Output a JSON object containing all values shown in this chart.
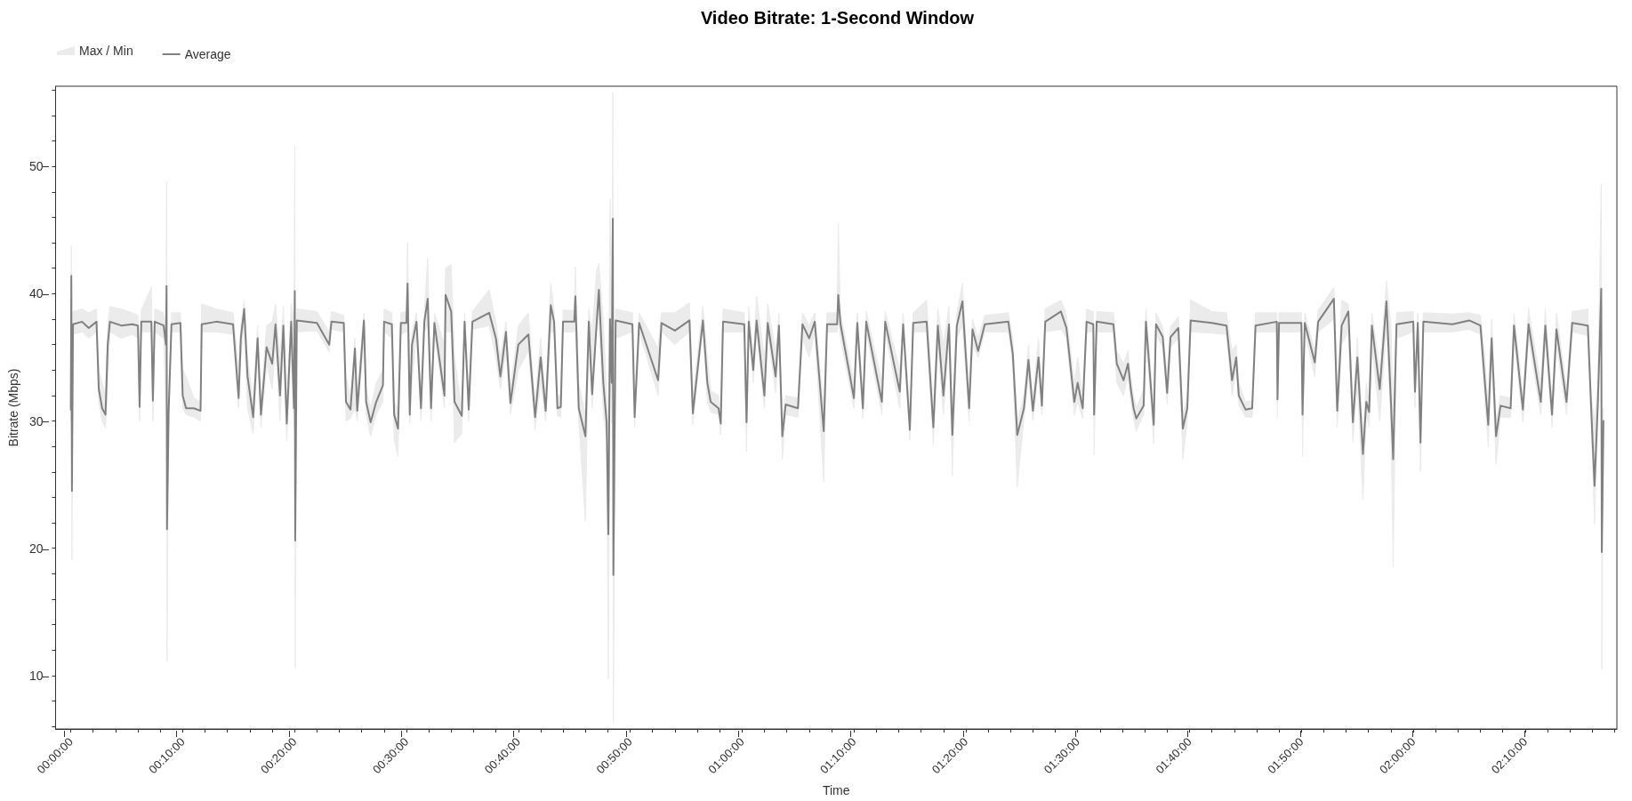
{
  "chart_data": {
    "type": "line",
    "title": "Video Bitrate: 1-Second Window",
    "xlabel": "Time",
    "ylabel": "Bitrate (Mbps)",
    "annotations": [
      "Max / Min"
    ],
    "x": [
      0,
      0.0008,
      0.0017,
      0.0033,
      0.0167,
      0.0267,
      0.0383,
      0.0417,
      0.0467,
      0.0517,
      0.055,
      0.0583,
      0.075,
      0.0917,
      0.1,
      0.1025,
      0.105,
      0.12,
      0.1223,
      0.125,
      0.1383,
      0.1417,
      0.1427,
      0.1433,
      0.1458,
      0.15,
      0.1633,
      0.1667,
      0.1717,
      0.1833,
      0.1933,
      0.195,
      0.2167,
      0.2417,
      0.25,
      0.2533,
      0.2583,
      0.2633,
      0.2717,
      0.2783,
      0.2833,
      0.2917,
      0.3,
      0.305,
      0.3117,
      0.3167,
      0.3217,
      0.3283,
      0.3325,
      0.3337,
      0.3343,
      0.3367,
      0.3667,
      0.385,
      0.3883,
      0.4067,
      0.41,
      0.4167,
      0.4233,
      0.4267,
      0.4367,
      0.44,
      0.4467,
      0.455,
      0.465,
      0.4667,
      0.4783,
      0.4817,
      0.4875,
      0.4917,
      0.5,
      0.5017,
      0.505,
      0.5083,
      0.515,
      0.5217,
      0.5267,
      0.5317,
      0.5367,
      0.5417,
      0.5567,
      0.5583,
      0.5667,
      0.5717,
      0.5825,
      0.5867,
      0.5928,
      0.5983,
      0.6233,
      0.6333,
      0.64,
      0.6483,
      0.655,
      0.6667,
      0.6817,
      0.6917,
      0.7,
      0.7075,
      0.715,
      0.72,
      0.725,
      0.73,
      0.7333,
      0.75,
      0.7517,
      0.7567,
      0.7667,
      0.7717,
      0.7767,
      0.7833,
      0.7867,
      0.7933,
      0.7983,
      0.8008,
      0.8033,
      0.8058,
      0.8075,
      0.8083,
      0.8117,
      0.8367,
      0.84,
      0.8467,
      0.875,
      0.88,
      0.9,
      0.9217,
      0.9267,
      0.9417,
      0.9483,
      0.9533,
      0.965,
      0.9683,
      0.9717,
      1.0033,
      1.0067,
      1.01,
      1.0167,
      1.0217,
      1.0333,
      1.0383,
      1.05,
      1.055,
      1.06,
      1.065,
      1.0833,
      1.09,
      1.1,
      1.1083,
      1.1217,
      1.1267,
      1.1417,
      1.1433,
      1.1467,
      1.1667,
      1.1717,
      1.18,
      1.185,
      1.2083,
      1.2133,
      1.235,
      1.24,
      1.25,
      1.255,
      1.275,
      1.285,
      1.2917,
      1.3,
      1.3083,
      1.3133,
      1.32,
      1.3283,
      1.3383,
      1.3433,
      1.3517,
      1.3617,
      1.3967,
      1.4033,
      1.41,
      1.42,
      1.4267,
      1.4333,
      1.4417,
      1.4467,
      1.4517,
      1.475,
      1.4833,
      1.495,
      1.5,
      1.5075,
      1.5133,
      1.5233,
      1.5245,
      1.5283,
      1.5533,
      1.5583,
      1.5683,
      1.575,
      1.5792,
      1.5833,
      1.5873,
      1.5983,
      1.6017,
      1.6133,
      1.6167,
      1.6267,
      1.6333,
      1.6383,
      1.65,
      1.6567,
      1.6633,
      1.6683,
      1.7,
      1.7217,
      1.73,
      1.7362,
      1.74,
      1.75,
      1.76,
      1.765,
      1.7967,
      1.7977,
      1.8,
      1.8333,
      1.835,
      1.8383,
      1.8533,
      1.8583,
      1.8817,
      1.8867,
      1.8933,
      1.9033,
      1.91,
      1.9167,
      1.925,
      1.93,
      1.9342,
      1.9383,
      1.95,
      1.96,
      1.9667,
      1.97,
      1.975,
      2.0,
      2.0025,
      2.0067,
      2.0107,
      2.015,
      2.0583,
      2.0833,
      2.1,
      2.1067,
      2.1117,
      2.1167,
      2.1233,
      2.13,
      2.145,
      2.15,
      2.1633,
      2.1717,
      2.19,
      2.1967,
      2.2067,
      2.2133,
      2.2283,
      2.2367,
      2.26,
      2.265,
      2.27,
      2.275,
      2.28,
      2.2808,
      2.2833
    ],
    "series": [
      {
        "name": "Average",
        "type": "line",
        "color": "#808080",
        "values": [
          30.9,
          41.4,
          24.5,
          37.6,
          37.8,
          37.3,
          37.8,
          32.5,
          31.0,
          30.5,
          36,
          37.8,
          37.5,
          37.6,
          37.5,
          31.1,
          37.8,
          37.8,
          31.6,
          37.8,
          37.5,
          36,
          40.6,
          21.5,
          30.8,
          37.6,
          37.7,
          32,
          31.0,
          31.0,
          30.8,
          37.6,
          37.8,
          37.6,
          31.8,
          36.5,
          38.8,
          33.5,
          30.3,
          36.5,
          30.5,
          35.8,
          34.5,
          37.6,
          32,
          37.5,
          29.8,
          37.8,
          31,
          40.2,
          20.6,
          37.9,
          37.7,
          36.0,
          37.8,
          37.7,
          31.5,
          30.9,
          35.7,
          30.8,
          37.9,
          31.5,
          29.9,
          31.5,
          32.8,
          37.8,
          37.6,
          30.5,
          29.4,
          37.7,
          37.7,
          40.8,
          30.5,
          36,
          37.8,
          31.0,
          37.8,
          39.6,
          31,
          37.7,
          32.0,
          39.9,
          38.6,
          31.5,
          30.4,
          37.8,
          30.9,
          37.8,
          38.5,
          36.5,
          33.5,
          37,
          31.4,
          36.0,
          36.8,
          30.3,
          35,
          30.8,
          39.1,
          37.8,
          31,
          31.1,
          37.8,
          37.8,
          39.8,
          31,
          28.8,
          37.8,
          32.1,
          37.6,
          40.3,
          33,
          29.9,
          21.1,
          38,
          33,
          45.9,
          17.9,
          37.9,
          37.6,
          30.3,
          37.7,
          33.2,
          37.7,
          37.1,
          37.9,
          30.6,
          37.9,
          33,
          31.5,
          31,
          29.8,
          37.8,
          37.6,
          29.9,
          37.8,
          34,
          37.9,
          32,
          37.7,
          33.5,
          37.5,
          28.8,
          31.3,
          31.0,
          37.6,
          36.5,
          37.8,
          29.2,
          37.6,
          37.6,
          39.9,
          37.6,
          31.8,
          37.7,
          31,
          37.8,
          31.5,
          37.8,
          32.3,
          37.6,
          29.3,
          37.7,
          37.8,
          29.5,
          37.5,
          32,
          37.6,
          28.9,
          37.5,
          39.4,
          31,
          37.2,
          35.5,
          37.6,
          37.8,
          35.3,
          28.9,
          31,
          34.8,
          30.8,
          35,
          31.2,
          37.8,
          38.6,
          37.3,
          31.5,
          33.0,
          31,
          37.8,
          37.6,
          30.5,
          37.8,
          37.6,
          34.5,
          33.2,
          34.5,
          32.5,
          31,
          30.2,
          31.2,
          37.8,
          29.7,
          37.6,
          36.6,
          32.2,
          36.6,
          37.3,
          29.4,
          31,
          37.9,
          37.7,
          37.5,
          33.2,
          35,
          32,
          30.9,
          31,
          37.5,
          37.8,
          31.7,
          37.7,
          37.7,
          30.5,
          37.7,
          34.6,
          37.8,
          39.6,
          30.8,
          37.5,
          38.6,
          29.9,
          35,
          27.4,
          31.5,
          30.7,
          37.5,
          32.5,
          39.4,
          31.5,
          27.0,
          37.6,
          37.8,
          32.3,
          37.7,
          28.3,
          37.8,
          37.6,
          37.9,
          37.5,
          33,
          29.7,
          36.5,
          28.8,
          31.2,
          31,
          37.5,
          30.9,
          37.6,
          31.5,
          37.5,
          30.5,
          37.2,
          31.5,
          37.7,
          37.5,
          31,
          24.9,
          31.5,
          40.4,
          19.7,
          30.0
        ],
        "lower": [
          30.0,
          36,
          19.1,
          36.8,
          37.0,
          36.5,
          37,
          31.5,
          30.0,
          29.4,
          33,
          37.0,
          36.5,
          36.8,
          36.5,
          30.0,
          37.0,
          37,
          30.0,
          37,
          36.5,
          30.5,
          36,
          11.1,
          30.0,
          37.0,
          37,
          31,
          30.5,
          30.3,
          30.0,
          37.0,
          37.0,
          36.8,
          31,
          35,
          37.5,
          31,
          29.0,
          35,
          29.5,
          34.5,
          32.5,
          36,
          30.0,
          36.5,
          28.4,
          36,
          29.5,
          37,
          10.6,
          37.0,
          37.1,
          35.4,
          37.2,
          37.0,
          30.0,
          30.2,
          31,
          30.0,
          36.5,
          30.5,
          28.8,
          30.5,
          31.5,
          37,
          36.5,
          28.5,
          27.2,
          36.8,
          37,
          37,
          29.8,
          33,
          37,
          30.0,
          37,
          37.5,
          30,
          37,
          31,
          37,
          37,
          28.3,
          29,
          37,
          30,
          37.2,
          37.5,
          35,
          32.5,
          35.5,
          30.5,
          34,
          35.5,
          29.3,
          33,
          30,
          37,
          37,
          30.4,
          30.3,
          37,
          37,
          37.5,
          30,
          22.1,
          37,
          31,
          37,
          38,
          30.5,
          28.5,
          9.7,
          34,
          29.8,
          38,
          6.3,
          36.5,
          37,
          29.5,
          37.0,
          32,
          37,
          36,
          37,
          29.7,
          37.5,
          31.5,
          30.7,
          30.5,
          28.9,
          37,
          37,
          27.6,
          37,
          33,
          37,
          31,
          37,
          32.2,
          36,
          27.0,
          30.5,
          30.3,
          36.5,
          35,
          37,
          25.2,
          37,
          37,
          38,
          36.5,
          31,
          37,
          30.2,
          37,
          30.5,
          37,
          31,
          37,
          28.5,
          37,
          37,
          28.2,
          36,
          30.5,
          36.5,
          25.7,
          36.5,
          37.5,
          30,
          36,
          35,
          37,
          37,
          34.5,
          24.8,
          30.2,
          33.5,
          30,
          34,
          30.5,
          37,
          37.2,
          36.5,
          30.5,
          31.5,
          30.2,
          37,
          37,
          27.3,
          37,
          37,
          33,
          32,
          33.5,
          31.5,
          30.2,
          29.2,
          30.5,
          37,
          28.2,
          36.8,
          35.8,
          31.3,
          35.8,
          36.5,
          27.0,
          30,
          37,
          36.9,
          36.8,
          32,
          34,
          31.3,
          30.3,
          30.3,
          37,
          37,
          30.3,
          37,
          37,
          27.2,
          37,
          33.5,
          37,
          38,
          29.5,
          36,
          37,
          28.3,
          33,
          23.8,
          30.5,
          29.5,
          36,
          30,
          37.5,
          29.6,
          18.5,
          36.5,
          37,
          31,
          37,
          26.0,
          37,
          37,
          37.2,
          36.8,
          31.5,
          28.0,
          35,
          26.6,
          30.3,
          30.3,
          36.5,
          29.9,
          36.5,
          30.5,
          36.5,
          29.5,
          36,
          30.5,
          37,
          36.7,
          30.0,
          21.9,
          30.5,
          38,
          10.5,
          29
        ],
        "upper": [
          31.8,
          43.8,
          30,
          38.6,
          38.8,
          38.5,
          38.8,
          34,
          33,
          32,
          37.5,
          39.0,
          38.8,
          38.5,
          38.3,
          33,
          38.7,
          40.5,
          34,
          38.8,
          38.5,
          37,
          48.8,
          30,
          32,
          38.5,
          38.5,
          34,
          33.5,
          31.8,
          31.5,
          39.2,
          38.8,
          38.5,
          34,
          37.5,
          39.5,
          35,
          31.5,
          37.5,
          31.5,
          37.5,
          37.8,
          39.2,
          35,
          39.0,
          31,
          39.2,
          38,
          51.6,
          30,
          38.8,
          38.6,
          37,
          38.6,
          38.3,
          33.5,
          31.8,
          36.5,
          31.8,
          38.5,
          32.5,
          31,
          33,
          34,
          38.8,
          38.5,
          31.5,
          31,
          38.5,
          38.6,
          44,
          33,
          37,
          38.5,
          32.5,
          38.6,
          42.8,
          32,
          38.5,
          36,
          42,
          42.3,
          35,
          31,
          38.5,
          32,
          38.6,
          40.3,
          37.8,
          35,
          37.8,
          32.5,
          37.5,
          38.5,
          31.5,
          36.5,
          31.5,
          40.8,
          38.7,
          32,
          32,
          38.7,
          38.7,
          42.1,
          33,
          30.5,
          38.8,
          37,
          41.8,
          42.4,
          38,
          32,
          30,
          47.4,
          38,
          55.8,
          30,
          38.8,
          38.5,
          31.5,
          38.5,
          35.7,
          38.5,
          38.5,
          39.3,
          32,
          39,
          35,
          32.4,
          32,
          31,
          38.8,
          38.5,
          31,
          39,
          35,
          39.8,
          35,
          39.2,
          35.5,
          38.5,
          30,
          32,
          31.8,
          38.5,
          37.5,
          38.5,
          31,
          38.5,
          38.5,
          45.6,
          38.5,
          33,
          38.5,
          32,
          38.6,
          33,
          38.6,
          34,
          38.5,
          30.5,
          38.5,
          39.5,
          31,
          38.8,
          36,
          39,
          30.5,
          38.5,
          40.8,
          32,
          38,
          36.5,
          38.3,
          38.5,
          36.5,
          30,
          32,
          36,
          31.8,
          36.5,
          32,
          38.8,
          39.5,
          38.3,
          33,
          35,
          31.8,
          38.8,
          38.6,
          31.5,
          38.6,
          38.5,
          35.5,
          34.5,
          35.5,
          33.5,
          32,
          31,
          32.5,
          38.8,
          31,
          38.5,
          37.4,
          33.5,
          37.4,
          38.2,
          30.5,
          32,
          39.5,
          38.6,
          38.5,
          35.5,
          36,
          33,
          31.5,
          31.6,
          38.5,
          38.5,
          33,
          38.5,
          38.5,
          31.5,
          38.5,
          35.5,
          38.7,
          40.5,
          32,
          39.5,
          39.2,
          31,
          36.5,
          29,
          33,
          31.5,
          38.5,
          34,
          41,
          37.5,
          30,
          38.5,
          38.6,
          33.5,
          38.5,
          30,
          38.5,
          38.4,
          38.5,
          38.3,
          35,
          31,
          38,
          30,
          32,
          31.8,
          38.5,
          32,
          38.8,
          33,
          38.8,
          31.5,
          38.5,
          32.5,
          38.6,
          38.8,
          32,
          30,
          33,
          48.6,
          30,
          31
        ]
      }
    ],
    "xlim": [
      -0.0227,
      2.3033
    ],
    "xticks": [
      {
        "value": 0,
        "label": "00:00:00"
      },
      {
        "value": 0.0333,
        "label": null
      },
      {
        "value": 0.0667,
        "label": null
      },
      {
        "value": 0.1,
        "label": null
      },
      {
        "value": 0.1333,
        "label": null
      },
      {
        "value": 0.1667,
        "label": "00:10:00"
      },
      {
        "value": 0.2,
        "label": null
      },
      {
        "value": 0.2333,
        "label": null
      },
      {
        "value": 0.2667,
        "label": null
      },
      {
        "value": 0.3,
        "label": null
      },
      {
        "value": 0.3333,
        "label": "00:20:00"
      },
      {
        "value": 0.3667,
        "label": null
      },
      {
        "value": 0.4,
        "label": null
      },
      {
        "value": 0.4333,
        "label": null
      },
      {
        "value": 0.4667,
        "label": null
      },
      {
        "value": 0.5,
        "label": "00:30:00"
      },
      {
        "value": 0.5333,
        "label": null
      },
      {
        "value": 0.5667,
        "label": null
      },
      {
        "value": 0.6,
        "label": null
      },
      {
        "value": 0.6333,
        "label": null
      },
      {
        "value": 0.6667,
        "label": "00:40:00"
      },
      {
        "value": 0.7,
        "label": null
      },
      {
        "value": 0.7333,
        "label": null
      },
      {
        "value": 0.7667,
        "label": null
      },
      {
        "value": 0.8,
        "label": null
      },
      {
        "value": 0.8333,
        "label": "00:50:00"
      },
      {
        "value": 0.8667,
        "label": null
      },
      {
        "value": 0.9,
        "label": null
      },
      {
        "value": 0.9333,
        "label": null
      },
      {
        "value": 0.9667,
        "label": null
      },
      {
        "value": 1,
        "label": "01:00:00"
      },
      {
        "value": 1.0333,
        "label": null
      },
      {
        "value": 1.0667,
        "label": null
      },
      {
        "value": 1.1,
        "label": null
      },
      {
        "value": 1.1333,
        "label": null
      },
      {
        "value": 1.1667,
        "label": "01:10:00"
      },
      {
        "value": 1.2,
        "label": null
      },
      {
        "value": 1.2333,
        "label": null
      },
      {
        "value": 1.2667,
        "label": null
      },
      {
        "value": 1.3,
        "label": null
      },
      {
        "value": 1.3333,
        "label": "01:20:00"
      },
      {
        "value": 1.3667,
        "label": null
      },
      {
        "value": 1.4,
        "label": null
      },
      {
        "value": 1.4333,
        "label": null
      },
      {
        "value": 1.4667,
        "label": null
      },
      {
        "value": 1.5,
        "label": "01:30:00"
      },
      {
        "value": 1.5333,
        "label": null
      },
      {
        "value": 1.5667,
        "label": null
      },
      {
        "value": 1.6,
        "label": null
      },
      {
        "value": 1.6333,
        "label": null
      },
      {
        "value": 1.6667,
        "label": "01:40:00"
      },
      {
        "value": 1.7,
        "label": null
      },
      {
        "value": 1.7333,
        "label": null
      },
      {
        "value": 1.7667,
        "label": null
      },
      {
        "value": 1.8,
        "label": null
      },
      {
        "value": 1.8333,
        "label": "01:50:00"
      },
      {
        "value": 1.8667,
        "label": null
      },
      {
        "value": 1.9,
        "label": null
      },
      {
        "value": 1.9333,
        "label": null
      },
      {
        "value": 1.9667,
        "label": null
      },
      {
        "value": 2,
        "label": "02:00:00"
      },
      {
        "value": 2.0333,
        "label": null
      },
      {
        "value": 2.0667,
        "label": null
      },
      {
        "value": 2.1,
        "label": null
      },
      {
        "value": 2.1333,
        "label": null
      },
      {
        "value": 2.1667,
        "label": "02:10:00"
      },
      {
        "value": 2.2,
        "label": null
      },
      {
        "value": 2.2333,
        "label": null
      },
      {
        "value": 2.2667,
        "label": null
      },
      {
        "value": 2.3,
        "label": null
      }
    ],
    "ylim": [
      5.8,
      56.3
    ],
    "yticks": [
      {
        "value": 6,
        "label": null
      },
      {
        "value": 8,
        "label": null
      },
      10,
      {
        "value": 12,
        "label": null
      },
      {
        "value": 14,
        "label": null
      },
      {
        "value": 16,
        "label": null
      },
      {
        "value": 18,
        "label": null
      },
      20,
      {
        "value": 22,
        "label": null
      },
      {
        "value": 24,
        "label": null
      },
      {
        "value": 26,
        "label": null
      },
      {
        "value": 28,
        "label": null
      },
      30,
      {
        "value": 32,
        "label": null
      },
      {
        "value": 34,
        "label": null
      },
      {
        "value": 36,
        "label": null
      },
      {
        "value": 38,
        "label": null
      },
      40,
      {
        "value": 42,
        "label": null
      },
      {
        "value": 44,
        "label": null
      },
      {
        "value": 46,
        "label": null
      },
      {
        "value": 48,
        "label": null
      },
      50,
      {
        "value": 52,
        "label": null
      },
      {
        "value": 54,
        "label": null
      },
      {
        "value": 56,
        "label": null
      }
    ],
    "legend": "top left",
    "marker": "none",
    "line_style": "solid"
  }
}
